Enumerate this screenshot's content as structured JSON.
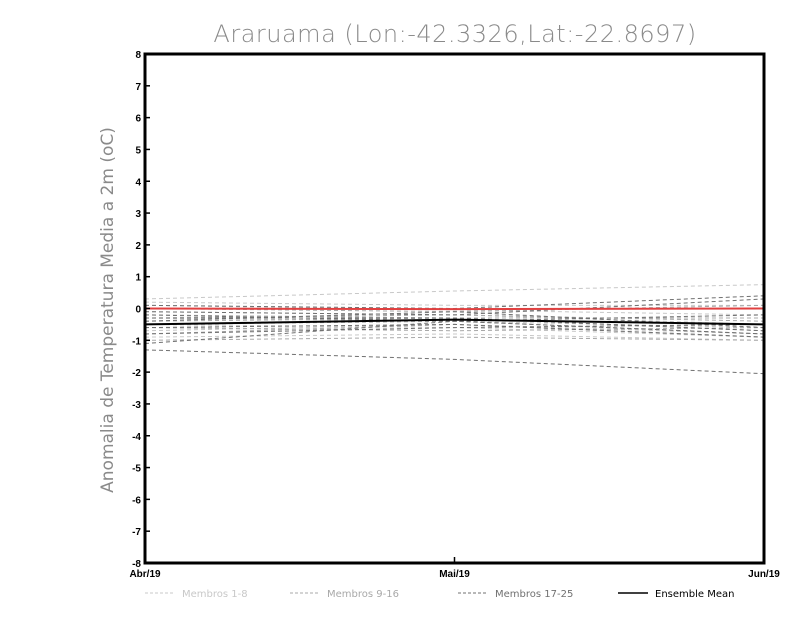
{
  "chart_data": {
    "type": "line",
    "title": "Araruama (Lon:-42.3326,Lat:-22.8697)",
    "xlabel": "",
    "ylabel": "Anomalia de Temperatura Media a 2m (oC)",
    "categories": [
      "Abr/19",
      "Mai/19",
      "Jun/19"
    ],
    "ylim": [
      -8,
      8
    ],
    "yticks": [
      8,
      7,
      6,
      5,
      4,
      3,
      2,
      1,
      0,
      -1,
      -2,
      -3,
      -4,
      -5,
      -6,
      -7,
      -8
    ],
    "grid": false,
    "legend_position": "bottom",
    "colors": {
      "group1": "#c8c8c8",
      "group2": "#a8a8a8",
      "group3": "#707070",
      "mean": "#000000",
      "observed": "#e04040"
    },
    "legend": [
      {
        "label": "Membros 1-8",
        "group": "group1"
      },
      {
        "label": "Membros 9-16",
        "group": "group2"
      },
      {
        "label": "Membros 17-25",
        "group": "group3"
      },
      {
        "label": "Ensemble Mean",
        "group": "mean"
      }
    ],
    "series": [
      {
        "group": "group1",
        "values": [
          0.3,
          0.55,
          0.75
        ]
      },
      {
        "group": "group1",
        "values": [
          0.2,
          0.1,
          0.1
        ]
      },
      {
        "group": "group1",
        "values": [
          0.1,
          -0.05,
          -0.2
        ]
      },
      {
        "group": "group1",
        "values": [
          -0.1,
          -0.2,
          -0.5
        ]
      },
      {
        "group": "group1",
        "values": [
          -0.3,
          -0.4,
          -0.6
        ]
      },
      {
        "group": "group1",
        "values": [
          -0.5,
          -0.6,
          -0.9
        ]
      },
      {
        "group": "group1",
        "values": [
          -0.7,
          -0.5,
          -0.8
        ]
      },
      {
        "group": "group1",
        "values": [
          -0.9,
          -0.8,
          -1.0
        ]
      },
      {
        "group": "group2",
        "values": [
          0.0,
          -0.1,
          0.1
        ]
      },
      {
        "group": "group2",
        "values": [
          -0.2,
          -0.3,
          -0.3
        ]
      },
      {
        "group": "group2",
        "values": [
          -0.4,
          -0.3,
          -0.7
        ]
      },
      {
        "group": "group2",
        "values": [
          -0.6,
          -0.7,
          -0.6
        ]
      },
      {
        "group": "group2",
        "values": [
          -0.8,
          -0.5,
          -0.9
        ]
      },
      {
        "group": "group2",
        "values": [
          -1.0,
          -0.9,
          -1.0
        ]
      },
      {
        "group": "group2",
        "values": [
          -0.3,
          -0.2,
          -0.4
        ]
      },
      {
        "group": "group2",
        "values": [
          -0.5,
          -0.4,
          -0.8
        ]
      },
      {
        "group": "group3",
        "values": [
          0.1,
          0.0,
          0.4
        ]
      },
      {
        "group": "group3",
        "values": [
          -0.1,
          -0.2,
          0.3
        ]
      },
      {
        "group": "group3",
        "values": [
          -0.2,
          -0.4,
          -0.2
        ]
      },
      {
        "group": "group3",
        "values": [
          -0.3,
          -0.3,
          -0.7
        ]
      },
      {
        "group": "group3",
        "values": [
          -0.4,
          -0.1,
          -0.6
        ]
      },
      {
        "group": "group3",
        "values": [
          -0.6,
          -0.5,
          -0.9
        ]
      },
      {
        "group": "group3",
        "values": [
          -0.8,
          -0.6,
          -0.5
        ]
      },
      {
        "group": "group3",
        "values": [
          -1.1,
          -0.4,
          -0.8
        ]
      },
      {
        "group": "group3",
        "values": [
          -1.3,
          -1.6,
          -2.05
        ]
      },
      {
        "group": "mean",
        "values": [
          -0.5,
          -0.35,
          -0.5
        ]
      },
      {
        "group": "observed",
        "values": [
          0.0,
          -0.02,
          0.0
        ]
      }
    ]
  }
}
